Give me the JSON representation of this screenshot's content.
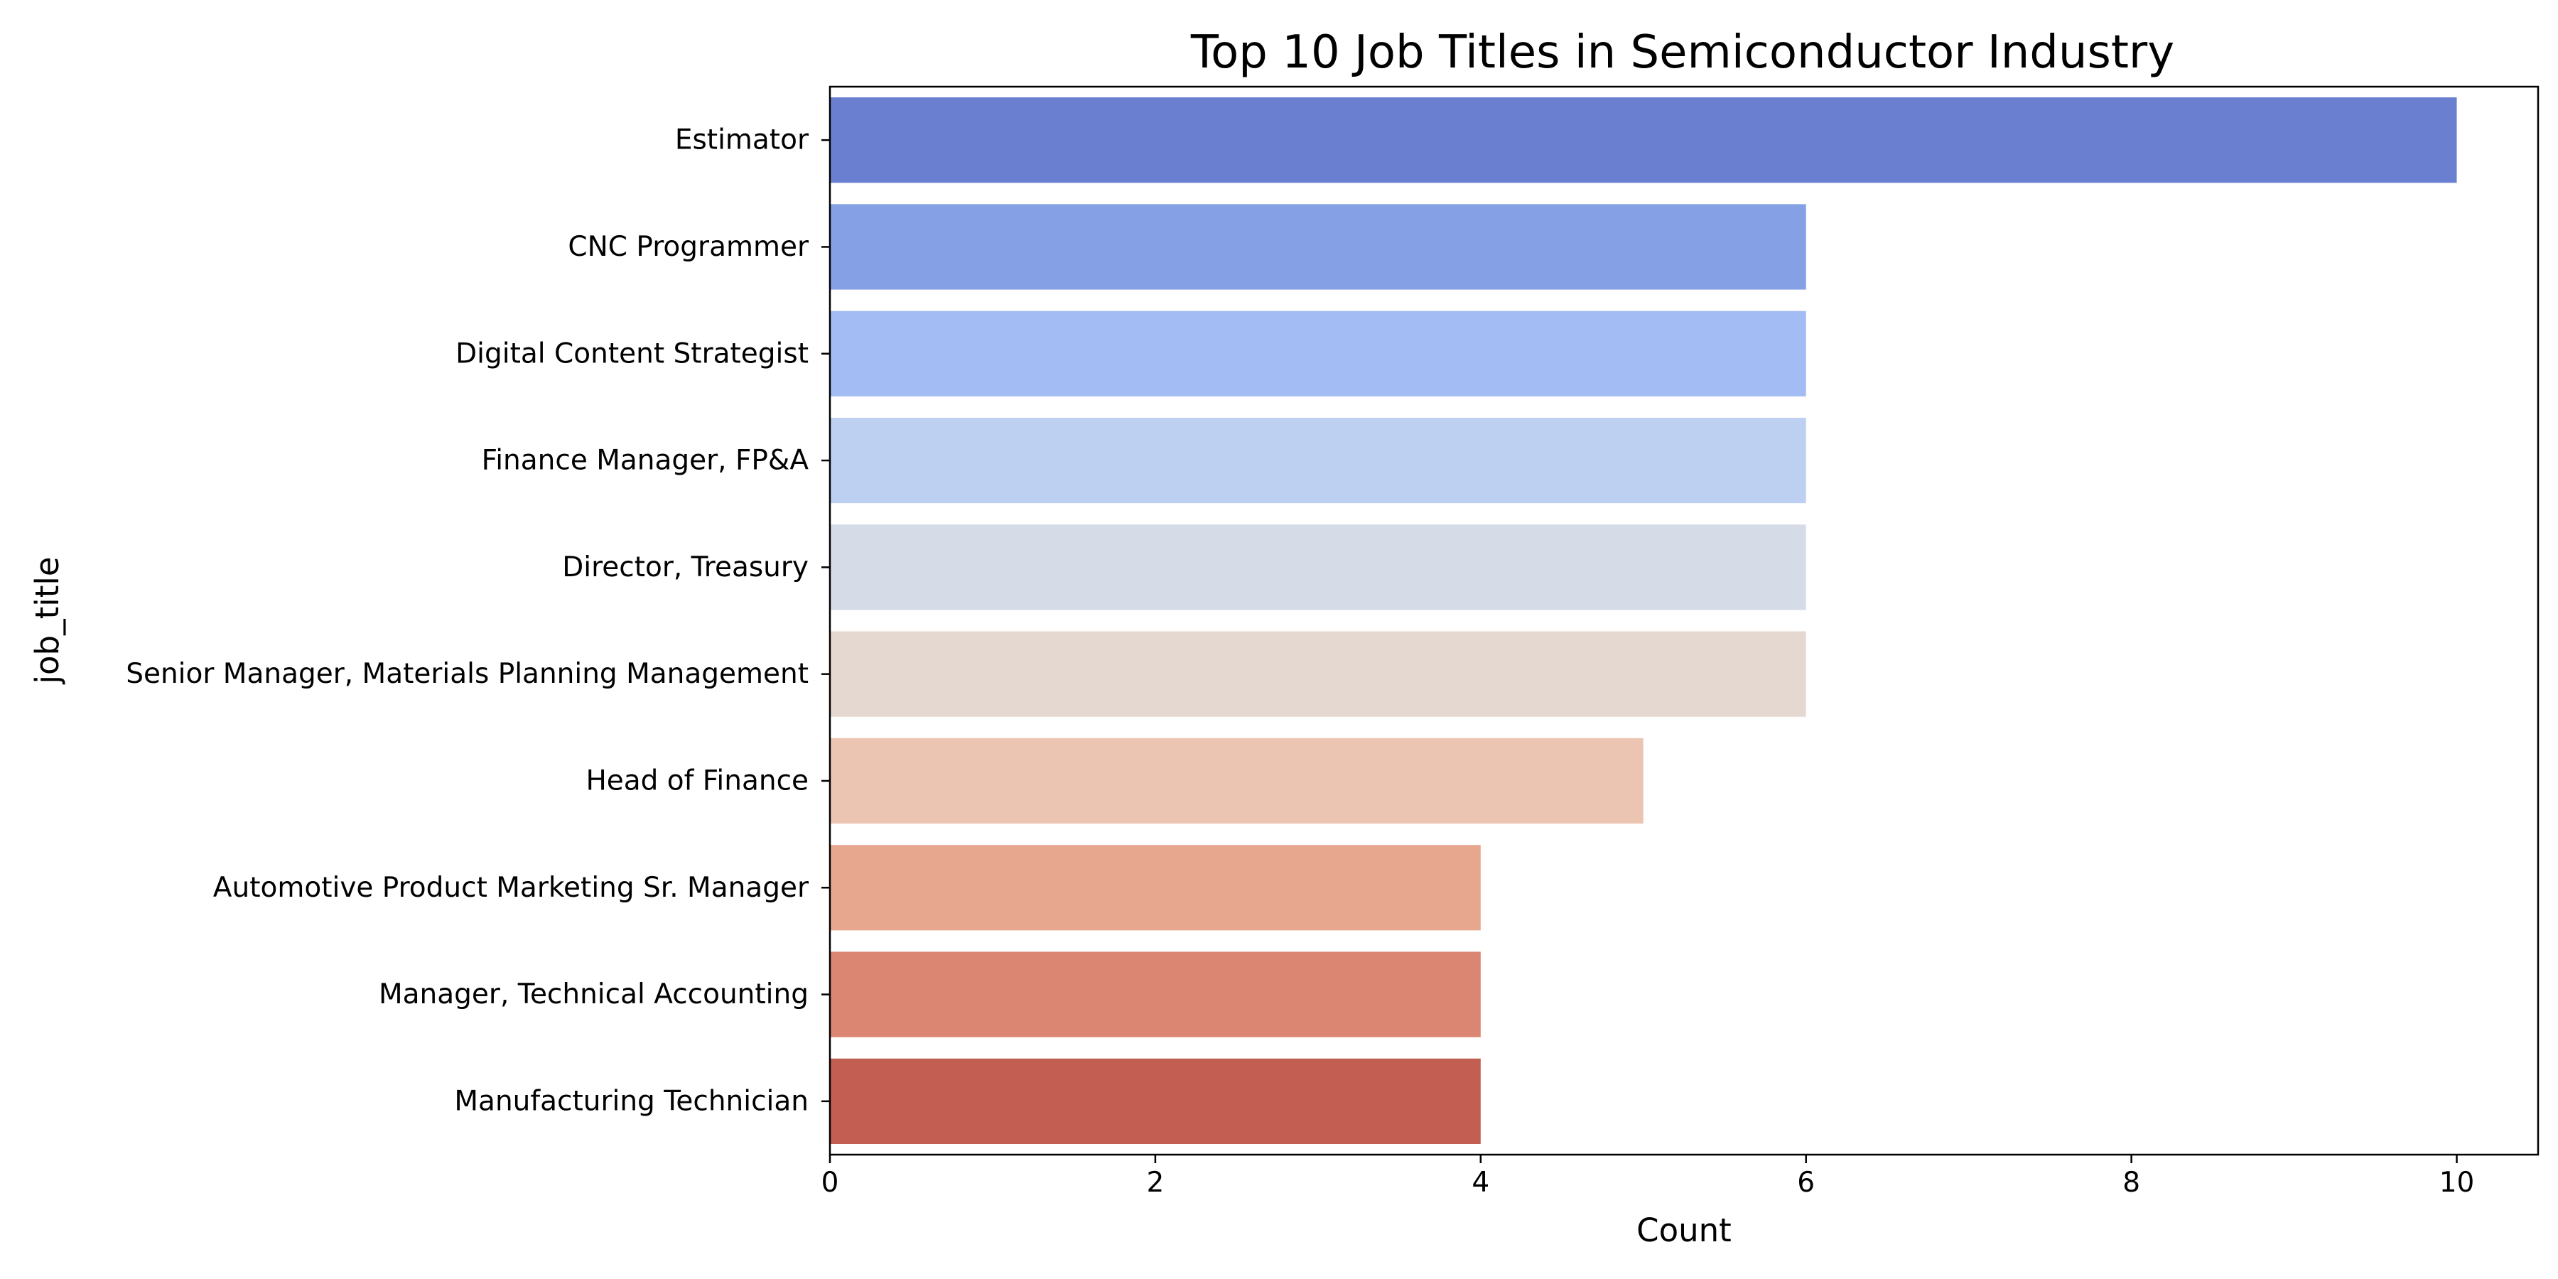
{
  "chart_data": {
    "type": "bar",
    "orientation": "horizontal",
    "title": "Top 10 Job Titles in Semiconductor Industry",
    "xlabel": "Count",
    "ylabel": "job_title",
    "xlim": [
      0,
      10.5
    ],
    "xticks": [
      "0",
      "2",
      "4",
      "6",
      "8",
      "10"
    ],
    "grid": false,
    "categories": [
      "Estimator",
      "CNC Programmer",
      "Digital Content Strategist",
      "Finance Manager, FP&A",
      "Director, Treasury",
      "Senior Manager, Materials Planning Management",
      "Head of Finance",
      "Automotive Product Marketing Sr. Manager",
      "Manager, Technical Accounting",
      "Manufacturing Technician"
    ],
    "values": [
      10,
      6,
      6,
      6,
      6,
      6,
      5,
      4,
      4,
      4
    ],
    "colors": [
      "#6a7fd0",
      "#85a0e5",
      "#a3bcf3",
      "#bdd0f1",
      "#d6dce7",
      "#e4d8d0",
      "#ecc5b2",
      "#e7a78f",
      "#da8672",
      "#c35e53"
    ]
  }
}
